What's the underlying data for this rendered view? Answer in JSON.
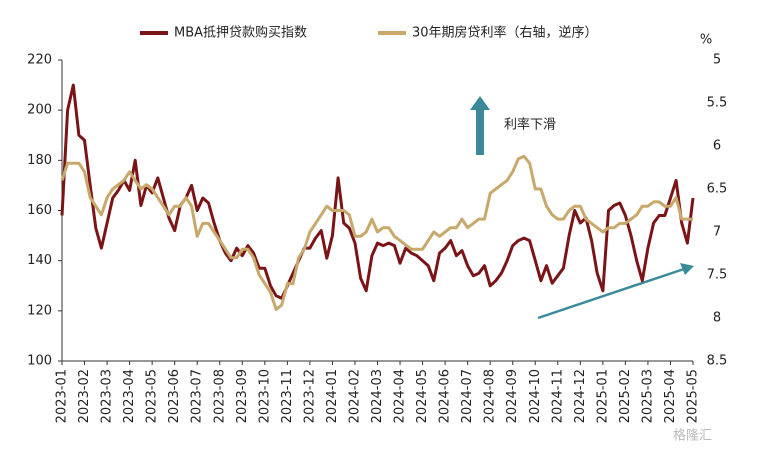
{
  "chart_data": {
    "type": "line",
    "categories": [
      "2023-01",
      null,
      null,
      null,
      "2023-02",
      null,
      null,
      null,
      "2023-03",
      null,
      null,
      null,
      "2023-04",
      null,
      null,
      null,
      "2023-05",
      null,
      null,
      null,
      "2023-06",
      null,
      null,
      null,
      "2023-07",
      null,
      null,
      null,
      "2023-08",
      null,
      null,
      null,
      "2023-09",
      null,
      null,
      null,
      "2023-10",
      null,
      null,
      null,
      "2023-11",
      null,
      null,
      null,
      "2023-12",
      null,
      null,
      null,
      "2024-01",
      null,
      null,
      null,
      "2024-02",
      null,
      null,
      null,
      "2024-03",
      null,
      null,
      null,
      "2024-04",
      null,
      null,
      null,
      "2024-05",
      null,
      null,
      null,
      "2024-06",
      null,
      null,
      null,
      "2024-07",
      null,
      null,
      null,
      "2024-08",
      null,
      null,
      null,
      "2024-09",
      null,
      null,
      null,
      "2024-10",
      null,
      null,
      null,
      "2024-11",
      null,
      null,
      null,
      "2024-12",
      null,
      null,
      null,
      "2025-01",
      null,
      null,
      null,
      "2025-02",
      null,
      null,
      null,
      "2025-03",
      null,
      null,
      null,
      "2025-04",
      null,
      null,
      null,
      "2025-05"
    ],
    "series": [
      {
        "name": "MBA抵押贷款购买指数",
        "color": "#7b1416",
        "values": [
          158,
          200,
          210,
          190,
          188,
          170,
          153,
          145,
          155,
          165,
          168,
          172,
          168,
          180,
          162,
          170,
          167,
          173,
          165,
          157,
          152,
          162,
          165,
          170,
          160,
          165,
          163,
          155,
          148,
          143,
          140,
          145,
          142,
          146,
          143,
          137,
          137,
          130,
          126,
          125,
          130,
          135,
          140,
          145,
          145,
          149,
          152,
          141,
          150,
          173,
          155,
          153,
          147,
          133,
          128,
          142,
          147,
          146,
          147,
          146,
          139,
          145,
          143,
          142,
          140,
          138,
          132,
          143,
          145,
          148,
          142,
          144,
          138,
          134,
          135,
          138,
          130,
          132,
          135,
          140,
          146,
          148,
          149,
          148,
          140,
          132,
          138,
          131,
          134,
          137,
          150,
          160,
          155,
          157,
          148,
          135,
          128,
          160,
          162,
          163,
          158,
          150,
          140,
          132,
          145,
          155,
          158,
          158,
          165,
          172,
          155,
          147,
          165
        ]
      },
      {
        "name": "30年期房贷利率（右轴，逆序）",
        "color": "#c8a86b",
        "axis": "y2",
        "values": [
          6.4,
          6.2,
          6.2,
          6.2,
          6.3,
          6.6,
          6.7,
          6.8,
          6.6,
          6.5,
          6.45,
          6.4,
          6.3,
          6.4,
          6.5,
          6.45,
          6.5,
          6.6,
          6.7,
          6.8,
          6.7,
          6.7,
          6.6,
          6.7,
          7.05,
          6.9,
          6.9,
          7.0,
          7.1,
          7.2,
          7.3,
          7.3,
          7.2,
          7.2,
          7.3,
          7.5,
          7.6,
          7.7,
          7.9,
          7.85,
          7.6,
          7.6,
          7.3,
          7.2,
          7.0,
          6.9,
          6.8,
          6.7,
          6.75,
          6.75,
          6.75,
          6.8,
          7.05,
          7.05,
          7.0,
          6.85,
          7.0,
          6.95,
          6.95,
          7.05,
          7.1,
          7.15,
          7.2,
          7.2,
          7.2,
          7.1,
          7.0,
          7.05,
          7.0,
          6.95,
          6.95,
          6.85,
          6.95,
          6.9,
          6.85,
          6.85,
          6.55,
          6.5,
          6.45,
          6.4,
          6.3,
          6.15,
          6.12,
          6.2,
          6.5,
          6.5,
          6.7,
          6.8,
          6.85,
          6.85,
          6.75,
          6.7,
          6.7,
          6.85,
          6.9,
          6.95,
          7.0,
          6.95,
          6.95,
          6.9,
          6.9,
          6.85,
          6.8,
          6.7,
          6.7,
          6.65,
          6.65,
          6.7,
          6.7,
          6.6,
          6.85,
          6.85,
          6.85
        ]
      }
    ],
    "ylim": [
      100,
      220
    ],
    "yticks": [
      100,
      120,
      140,
      160,
      180,
      200,
      220
    ],
    "y2lim": [
      5,
      8.5
    ],
    "y2ticks": [
      5,
      5.5,
      6,
      6.5,
      7,
      7.5,
      8,
      8.5
    ],
    "y2_inverted": true,
    "y2_label": "%",
    "annotation": "利率下滑",
    "watermark": "格隆汇"
  }
}
